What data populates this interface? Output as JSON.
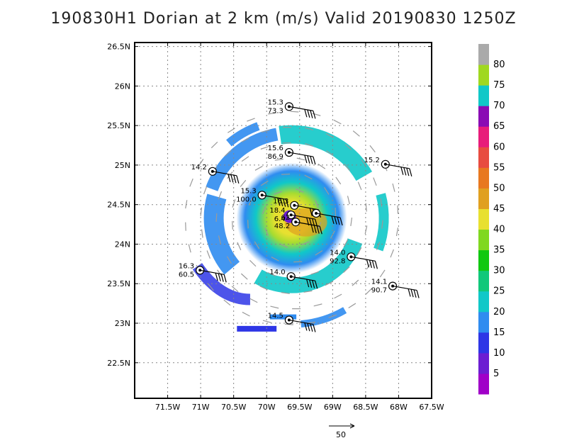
{
  "chart_data": {
    "type": "scatter",
    "title": "190830H1 Dorian at 2 km (m/s) Valid 20190830 1250Z",
    "x_ticks": [
      "71.5W",
      "71W",
      "70.5W",
      "70W",
      "69.5W",
      "69W",
      "68.5W",
      "68W",
      "67.5W"
    ],
    "y_ticks": [
      "26.5N",
      "26N",
      "25.5N",
      "25N",
      "24.5N",
      "24N",
      "23.5N",
      "23N",
      "22.5N"
    ],
    "xlim": [
      -72.0,
      -67.5
    ],
    "ylim": [
      22.05,
      26.55
    ],
    "grid": true,
    "colorbar": {
      "labels": [
        "5",
        "10",
        "15",
        "20",
        "25",
        "30",
        "35",
        "40",
        "45",
        "50",
        "55",
        "60",
        "65",
        "70",
        "75",
        "80"
      ],
      "colors": [
        "#a000c8",
        "#6c1ed2",
        "#2e36e6",
        "#2f8cf0",
        "#10c8c8",
        "#10c87a",
        "#10c810",
        "#80d820",
        "#e8e030",
        "#e0a020",
        "#e87820",
        "#e84c40",
        "#e81c7a",
        "#8a0ab4",
        "#10c8c8",
        "#a0d820",
        "#aaaaaa"
      ]
    },
    "observations": [
      {
        "lon": -69.66,
        "lat": 25.74,
        "top": "15.3",
        "bottom": "73.3"
      },
      {
        "lon": -69.66,
        "lat": 25.16,
        "top": "15.6",
        "bottom": "86.9"
      },
      {
        "lon": -68.2,
        "lat": 25.01,
        "top": "15.2",
        "bottom": ""
      },
      {
        "lon": -70.82,
        "lat": 24.92,
        "top": "14.2",
        "bottom": ""
      },
      {
        "lon": -70.07,
        "lat": 24.62,
        "top": "15.3",
        "bottom": "100.0"
      },
      {
        "lon": -69.58,
        "lat": 24.49,
        "top": "16.3",
        "bottom": ""
      },
      {
        "lon": -69.63,
        "lat": 24.37,
        "top": "18.4",
        "bottom": "6.4"
      },
      {
        "lon": -69.56,
        "lat": 24.28,
        "top": "62",
        "bottom": "48.2"
      },
      {
        "lon": -69.25,
        "lat": 24.39,
        "top": "",
        "bottom": ""
      },
      {
        "lon": -68.72,
        "lat": 23.84,
        "top": "14.0",
        "bottom": "92.8"
      },
      {
        "lon": -71.01,
        "lat": 23.67,
        "top": "16.3",
        "bottom": "60.5"
      },
      {
        "lon": -69.63,
        "lat": 23.59,
        "top": "14.0",
        "bottom": ""
      },
      {
        "lon": -68.09,
        "lat": 23.47,
        "top": "14.1",
        "bottom": "90.7"
      },
      {
        "lon": -69.66,
        "lat": 23.04,
        "top": "14.5",
        "bottom": ""
      }
    ],
    "center": {
      "lon": -69.62,
      "lat": 24.33
    }
  },
  "legend": {
    "arrow_label": "50"
  }
}
